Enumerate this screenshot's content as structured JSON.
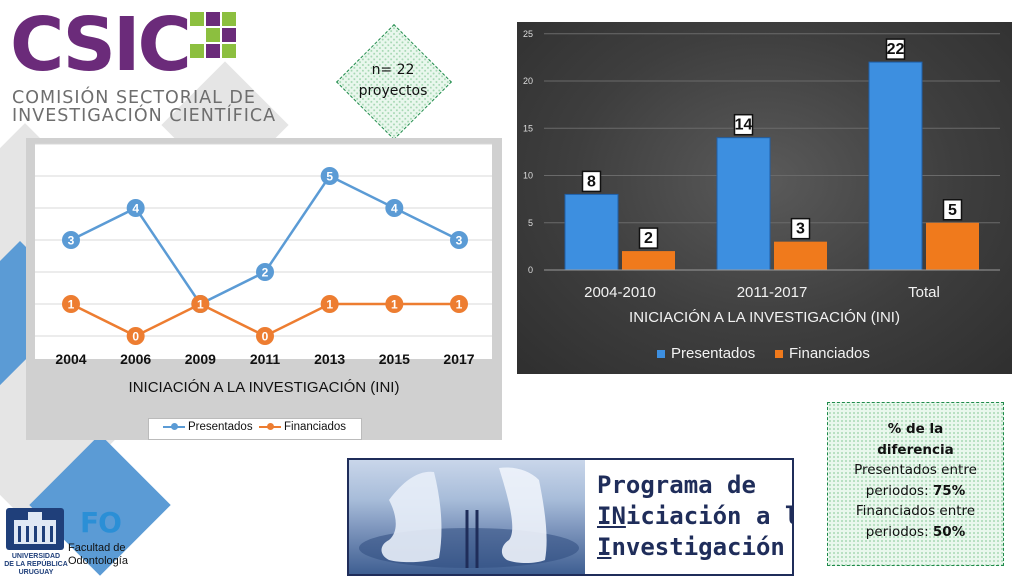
{
  "logo": {
    "word": "CSIC",
    "subtitle_line1": "COMISIÓN SECTORIAL DE",
    "subtitle_line2": "INVESTIGACIÓN CIENTÍFICA",
    "colors": {
      "purple": "#6b2b7a",
      "green": "#8cbf3f",
      "gray": "#6e6e6e"
    }
  },
  "n_box": {
    "line1": "n= 22",
    "line2": "proyectos"
  },
  "chart_data": [
    {
      "type": "line",
      "title": "INICIACIÓN A LA INVESTIGACIÓN (INI)",
      "categories": [
        "2004",
        "2006",
        "2009",
        "2011",
        "2013",
        "2015",
        "2017"
      ],
      "series": [
        {
          "name": "Presentados",
          "values": [
            3,
            4,
            1,
            2,
            5,
            4,
            3
          ],
          "color": "#5b9bd5"
        },
        {
          "name": "Financiados",
          "values": [
            1,
            0,
            1,
            0,
            1,
            1,
            1
          ],
          "color": "#ed7d31"
        }
      ],
      "ylim": [
        0,
        6
      ],
      "grid": true,
      "legend": "bottom",
      "data_labels": true
    },
    {
      "type": "bar",
      "title": "INICIACIÓN A LA INVESTIGACIÓN (INI)",
      "categories": [
        "2004-2010",
        "2011-2017",
        "Total"
      ],
      "series": [
        {
          "name": "Presentados",
          "values": [
            8,
            14,
            22
          ],
          "color": "#3d8fe0"
        },
        {
          "name": "Financiados",
          "values": [
            2,
            3,
            5
          ],
          "color": "#f07a1c"
        }
      ],
      "y_ticks": [
        "0",
        "5",
        "10",
        "15",
        "20",
        "25"
      ],
      "ylim": [
        0,
        25
      ],
      "grid": true,
      "legend": "bottom",
      "data_labels": true
    }
  ],
  "difference_box": {
    "heading_line1": "% de la",
    "heading_line2": "diferencia",
    "presentados_line1": "Presentados entre",
    "presentados_prefix": "periodos: ",
    "presentados_value": "75%",
    "financiados_line1": "Financiados entre",
    "financiados_prefix": "periodos: ",
    "financiados_value": "50%"
  },
  "program_banner": {
    "line1": "Programa de",
    "line2_bold": "IN",
    "line2_rest": "iciación a la",
    "line3_bold": "I",
    "line3_rest": "nvestigación"
  },
  "bottom_logos": {
    "udelar_line1": "UNIVERSIDAD",
    "udelar_line2": "DE LA REPÚBLICA",
    "udelar_line3": "URUGUAY",
    "fo_mark": "FO",
    "fo_line1": "Facultad de",
    "fo_line2": "Odontología"
  }
}
